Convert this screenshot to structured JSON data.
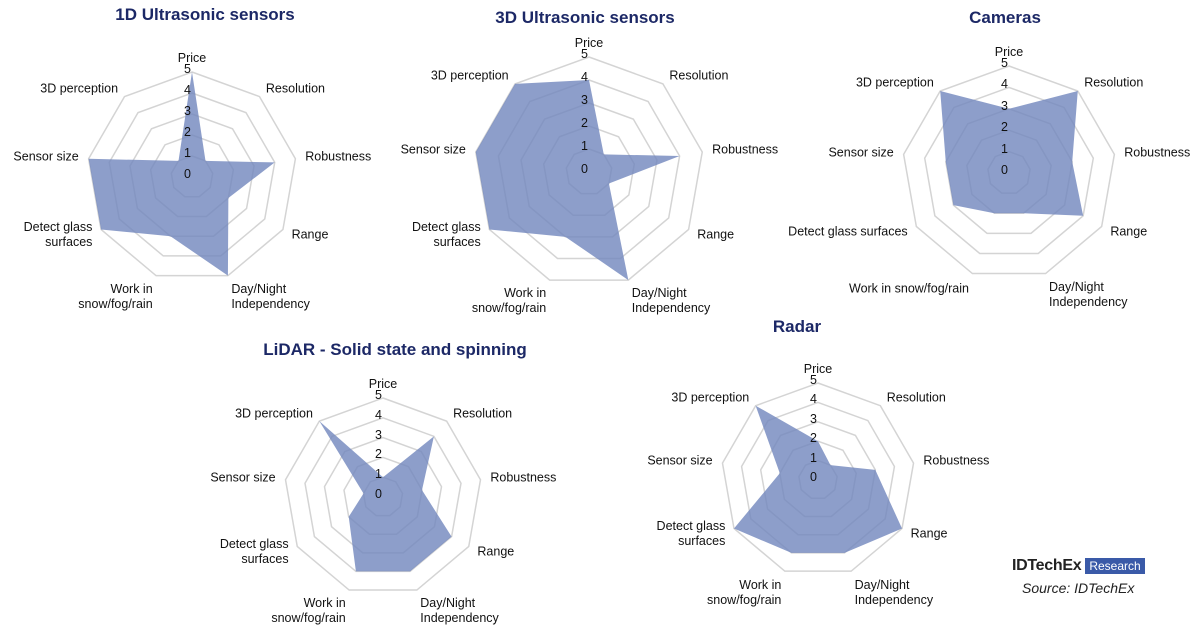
{
  "chart_data": [
    {
      "type": "radar",
      "title": "1D Ultrasonic sensors",
      "axes": [
        "Price",
        "Resolution",
        "Robustness",
        "Range",
        "Day/Night\nIndependency",
        "Work in\nsnow/fog/rain",
        "Detect glass\nsurfaces",
        "Sensor size",
        "3D perception"
      ],
      "values": [
        5,
        1,
        4,
        2,
        5,
        3,
        5,
        5,
        1
      ],
      "rlim": [
        0,
        5
      ],
      "ticks": [
        "0",
        "1",
        "2",
        "3",
        "4",
        "5"
      ]
    },
    {
      "type": "radar",
      "title": "3D Ultrasonic sensors",
      "axes": [
        "Price",
        "Resolution",
        "Robustness",
        "Range",
        "Day/Night\nIndependency",
        "Work in\nsnow/fog/rain",
        "Detect glass\nsurfaces",
        "Sensor size",
        "3D perception"
      ],
      "values": [
        4,
        1,
        4,
        1,
        5,
        3,
        5,
        5,
        5
      ],
      "rlim": [
        0,
        5
      ],
      "ticks": [
        "0",
        "1",
        "2",
        "3",
        "4",
        "5"
      ]
    },
    {
      "type": "radar",
      "title": "Cameras",
      "axes": [
        "Price",
        "Resolution",
        "Robustness",
        "Range",
        "Day/Night\nIndependency",
        "Work in snow/fog/rain",
        "Detect glass surfaces",
        "Sensor size",
        "3D perception"
      ],
      "values": [
        3,
        5,
        3,
        4,
        2,
        2,
        3,
        3,
        5
      ],
      "rlim": [
        0,
        5
      ],
      "ticks": [
        "0",
        "1",
        "2",
        "3",
        "4",
        "5"
      ]
    },
    {
      "type": "radar",
      "title": "LiDAR - Solid state and spinning",
      "axes": [
        "Price",
        "Resolution",
        "Robustness",
        "Range",
        "Day/Night\nIndependency",
        "Work in\nsnow/fog/rain",
        "Detect glass\nsurfaces",
        "Sensor size",
        "3D perception"
      ],
      "values": [
        1,
        4,
        2,
        4,
        4,
        4,
        2,
        1,
        5
      ],
      "rlim": [
        0,
        5
      ],
      "ticks": [
        "0",
        "1",
        "2",
        "3",
        "4",
        "5"
      ]
    },
    {
      "type": "radar",
      "title": "Radar",
      "axes": [
        "Price",
        "Resolution",
        "Robustness",
        "Range",
        "Day/Night\nIndependency",
        "Work in\nsnow/fog/rain",
        "Detect glass\nsurfaces",
        "Sensor size",
        "3D perception"
      ],
      "values": [
        2,
        1,
        3,
        5,
        4,
        4,
        5,
        2,
        5
      ],
      "rlim": [
        0,
        5
      ],
      "ticks": [
        "0",
        "1",
        "2",
        "3",
        "4",
        "5"
      ]
    }
  ],
  "colors": {
    "fill": "#7186bd",
    "grid": "#d4d4d4",
    "title": "#1c2866",
    "brand": "#3a5aa8"
  },
  "branding": {
    "logo": "IDTechEx",
    "badge": "Research",
    "source": "Source: IDTechEx"
  }
}
